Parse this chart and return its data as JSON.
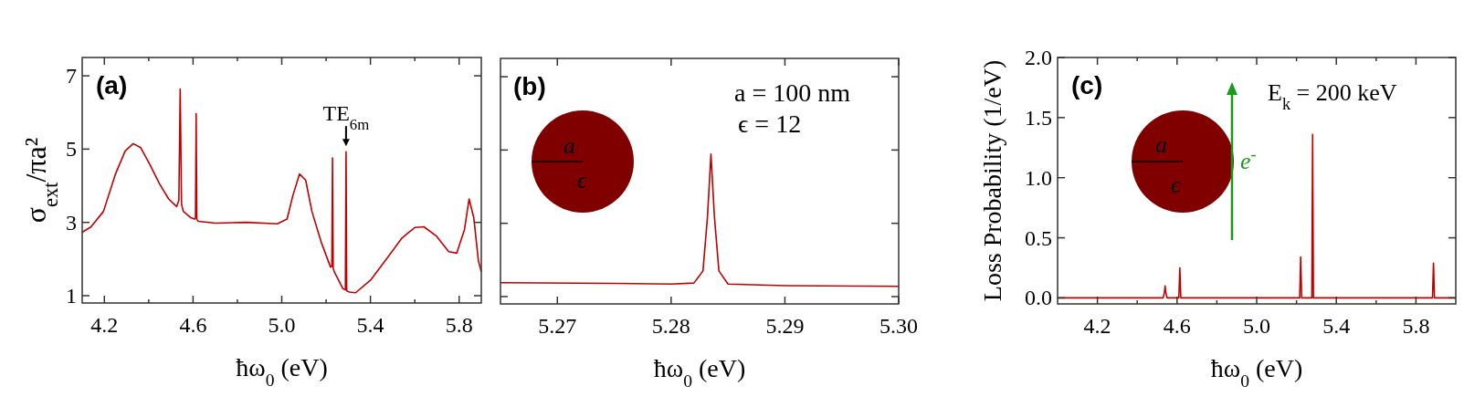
{
  "chart_data": [
    {
      "type": "line",
      "xlabel": "ħω$_{0}$ (eV)",
      "ylabel": "σ$_{ext}$/πa²",
      "xlim": [
        4.1,
        5.9
      ],
      "ylim": [
        0.8,
        7.5
      ],
      "xticks": [
        4.2,
        {
          "value": 4.4,
          "label": null
        },
        4.6,
        {
          "value": 4.8,
          "label": null
        },
        {
          "value": 5,
          "label": "5.0"
        },
        {
          "value": 5.2,
          "label": null
        },
        5.4,
        {
          "value": 5.6,
          "label": null
        },
        5.8
      ],
      "yticks": [
        1,
        3,
        5,
        7
      ],
      "annotations": [
        "(a)",
        {
          "text": "TE$_{6m}$",
          "x": 5.29,
          "y": 4.93
        }
      ],
      "series": [
        {
          "color": "#c00000",
          "x": [
            4.1,
            4.14,
            4.196,
            4.25,
            4.294,
            4.33,
            4.364,
            4.406,
            4.448,
            4.49,
            4.526,
            4.536,
            4.542,
            4.548,
            4.556,
            4.589,
            4.606,
            4.611,
            4.614,
            4.617,
            4.624,
            4.7,
            4.84,
            4.98,
            5.024,
            5.05,
            5.08,
            5.108,
            5.136,
            5.178,
            5.22,
            5.226,
            5.229,
            5.232,
            5.237,
            5.276,
            5.287,
            5.29,
            5.293,
            5.305,
            5.333,
            5.403,
            5.487,
            5.543,
            5.6,
            5.641,
            5.697,
            5.753,
            5.789,
            5.824,
            5.845,
            5.866,
            5.887,
            5.9
          ],
          "values": [
            2.73,
            2.88,
            3.3,
            4.32,
            4.95,
            5.15,
            5.04,
            4.57,
            4.06,
            3.64,
            3.43,
            3.6,
            6.64,
            3.5,
            3.3,
            3.13,
            3.09,
            3.12,
            5.97,
            3.08,
            3.03,
            2.98,
            3.0,
            2.96,
            3.09,
            3.73,
            4.32,
            4.15,
            3.3,
            2.46,
            1.78,
            1.8,
            4.76,
            1.75,
            1.65,
            1.19,
            1.16,
            4.93,
            1.13,
            1.1,
            1.08,
            1.44,
            2.12,
            2.58,
            2.86,
            2.88,
            2.63,
            2.2,
            2.16,
            2.8,
            3.64,
            3.13,
            1.95,
            1.65
          ]
        }
      ]
    },
    {
      "type": "line",
      "xlabel": "ħω$_{0}$ (eV)",
      "xlim": [
        5.265,
        5.3
      ],
      "ylim": [
        0.8,
        7.5
      ],
      "tick_labels": "x",
      "xticks": [
        5.27,
        5.28,
        5.29,
        {
          "value": 5.3,
          "label": "5.30"
        }
      ],
      "yticks": [
        {
          "value": 1,
          "label": null
        },
        {
          "value": 3,
          "label": null
        },
        {
          "value": 5,
          "label": null
        },
        {
          "value": 7,
          "label": null
        }
      ],
      "annotations": [
        "(b)",
        "a = 100 nm",
        "ϵ = 12",
        "a",
        "ϵ"
      ],
      "series": [
        {
          "color": "#c00000",
          "x": [
            5.265,
            5.275,
            5.28,
            5.282,
            5.2828,
            5.2832,
            5.2835,
            5.2838,
            5.2842,
            5.285,
            5.29,
            5.3
          ],
          "values": [
            1.38,
            1.36,
            1.34,
            1.37,
            1.7,
            3.2,
            4.89,
            3.2,
            1.7,
            1.34,
            1.3,
            1.28
          ]
        }
      ]
    },
    {
      "type": "line",
      "xlabel": "ħω$_{0}$ (eV)",
      "ylabel": "Loss Probability (1/eV)",
      "xlim": [
        4.0,
        6.0
      ],
      "ylim": [
        -0.05,
        2.0
      ],
      "xticks": [
        4.2,
        {
          "value": 4.4,
          "label": null
        },
        4.6,
        {
          "value": 4.8,
          "label": null
        },
        {
          "value": 5,
          "label": "5.0"
        },
        {
          "value": 5.2,
          "label": null
        },
        5.4,
        {
          "value": 5.6,
          "label": null
        },
        5.8
      ],
      "yticks": [
        {
          "value": 0,
          "label": "0.0"
        },
        0.5,
        {
          "value": 1,
          "label": "1.0"
        },
        1.5,
        {
          "value": 2,
          "label": "2.0"
        }
      ],
      "annotations": [
        "(c)",
        "E$_{k}$ = 200 keV",
        "e$^{-}$",
        "a",
        "ϵ"
      ],
      "series": [
        {
          "color": "#c00000",
          "x": [
            4.0,
            4.53,
            4.537,
            4.54,
            4.543,
            4.55,
            4.609,
            4.614,
            4.619,
            5.216,
            5.221,
            5.226,
            5.277,
            5.281,
            5.285,
            5.883,
            5.888,
            5.893,
            6.0
          ],
          "values": [
            0,
            0,
            0.05,
            0.1,
            0.05,
            0,
            0,
            0.25,
            0,
            0,
            0.34,
            0,
            0,
            1.36,
            0,
            0,
            0.29,
            0,
            0
          ]
        }
      ]
    }
  ]
}
